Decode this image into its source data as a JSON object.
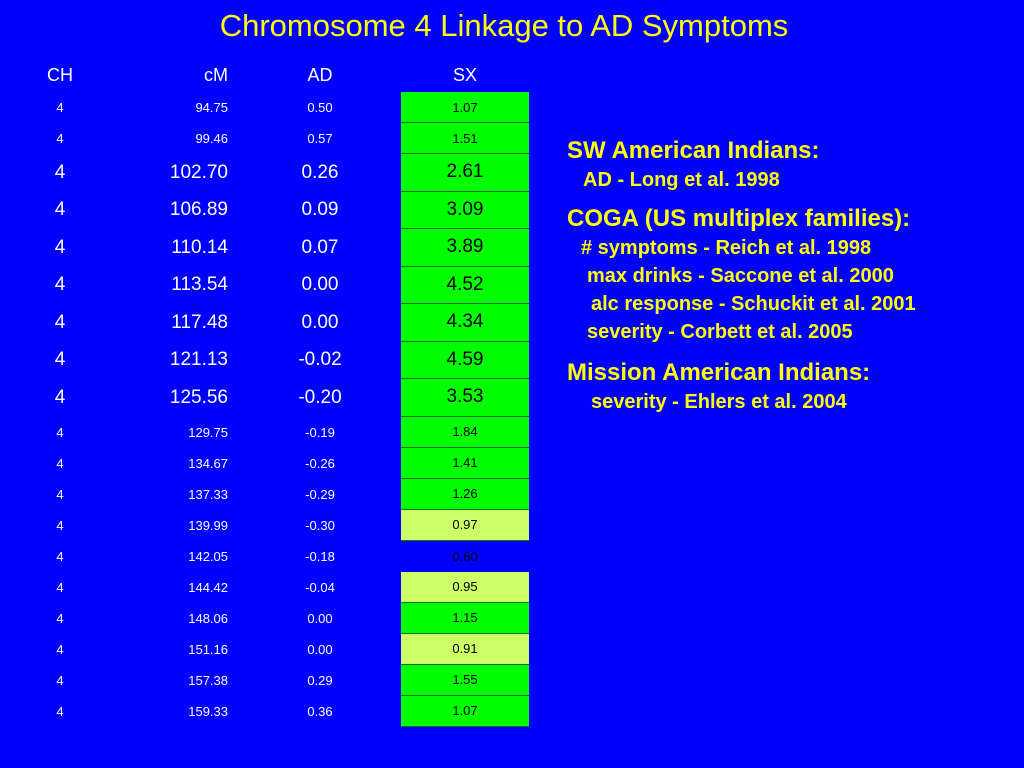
{
  "title": "Chromosome 4 Linkage to AD Symptoms",
  "colors": {
    "background": "#0000FF",
    "title": "#FFFF00",
    "header_text": "#FFFFFF",
    "sx_strong": "#00FF00",
    "sx_weak": "#CCFF66"
  },
  "table": {
    "headers": {
      "ch": "CH",
      "cm": "cM",
      "ad": "AD",
      "sx": "SX"
    },
    "rows": [
      {
        "ch": "4",
        "cm": "94.75",
        "ad": "0.50",
        "sx": "1.07",
        "size": "small",
        "fill": "green"
      },
      {
        "ch": "4",
        "cm": "99.46",
        "ad": "0.57",
        "sx": "1.51",
        "size": "small",
        "fill": "green"
      },
      {
        "ch": "4",
        "cm": "102.70",
        "ad": "0.26",
        "sx": "2.61",
        "size": "big",
        "fill": "green"
      },
      {
        "ch": "4",
        "cm": "106.89",
        "ad": "0.09",
        "sx": "3.09",
        "size": "big",
        "fill": "green"
      },
      {
        "ch": "4",
        "cm": "110.14",
        "ad": "0.07",
        "sx": "3.89",
        "size": "big",
        "fill": "green"
      },
      {
        "ch": "4",
        "cm": "113.54",
        "ad": "0.00",
        "sx": "4.52",
        "size": "big",
        "fill": "green"
      },
      {
        "ch": "4",
        "cm": "117.48",
        "ad": "0.00",
        "sx": "4.34",
        "size": "big",
        "fill": "green"
      },
      {
        "ch": "4",
        "cm": "121.13",
        "ad": "-0.02",
        "sx": "4.59",
        "size": "big",
        "fill": "green"
      },
      {
        "ch": "4",
        "cm": "125.56",
        "ad": "-0.20",
        "sx": "3.53",
        "size": "big",
        "fill": "green"
      },
      {
        "ch": "4",
        "cm": "129.75",
        "ad": "-0.19",
        "sx": "1.84",
        "size": "small",
        "fill": "green"
      },
      {
        "ch": "4",
        "cm": "134.67",
        "ad": "-0.26",
        "sx": "1.41",
        "size": "small",
        "fill": "green"
      },
      {
        "ch": "4",
        "cm": "137.33",
        "ad": "-0.29",
        "sx": "1.26",
        "size": "small",
        "fill": "green"
      },
      {
        "ch": "4",
        "cm": "139.99",
        "ad": "-0.30",
        "sx": "0.97",
        "size": "small",
        "fill": "light"
      },
      {
        "ch": "4",
        "cm": "142.05",
        "ad": "-0.18",
        "sx": "0.60",
        "size": "small",
        "fill": "none"
      },
      {
        "ch": "4",
        "cm": "144.42",
        "ad": "-0.04",
        "sx": "0.95",
        "size": "small",
        "fill": "light"
      },
      {
        "ch": "4",
        "cm": "148.06",
        "ad": "0.00",
        "sx": "1.15",
        "size": "small",
        "fill": "green"
      },
      {
        "ch": "4",
        "cm": "151.16",
        "ad": "0.00",
        "sx": "0.91",
        "size": "small",
        "fill": "light"
      },
      {
        "ch": "4",
        "cm": "157.38",
        "ad": "0.29",
        "sx": "1.55",
        "size": "small",
        "fill": "green"
      },
      {
        "ch": "4",
        "cm": "159.33",
        "ad": "0.36",
        "sx": "1.07",
        "size": "small",
        "fill": "green"
      }
    ]
  },
  "notes": {
    "sw_heading": "SW American Indians:",
    "sw_1": "AD - Long et al. 1998",
    "coga_heading": "COGA (US multiplex families):",
    "coga_1": "# symptoms - Reich et al. 1998",
    "coga_2": "max drinks - Saccone et al. 2000",
    "coga_3": "alc response - Schuckit et al. 2001",
    "coga_4": "severity - Corbett et al. 2005",
    "mission_heading": "Mission American Indians:",
    "mission_1": "severity - Ehlers et al. 2004"
  }
}
